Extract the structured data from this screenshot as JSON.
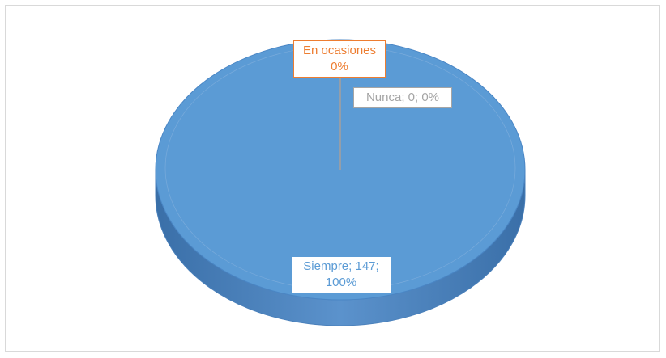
{
  "chart_data": {
    "type": "pie",
    "categories": [
      "Siempre",
      "En ocasiones",
      "Nunca"
    ],
    "values": [
      147,
      0,
      0
    ],
    "value_labels": [
      "Siempre; 147;\n100%",
      "En ocasiones\n0%",
      "Nunca; 0; 0%"
    ],
    "colors": [
      "#5b9bd5",
      "#ed7d31",
      "#a5a5a5"
    ]
  }
}
